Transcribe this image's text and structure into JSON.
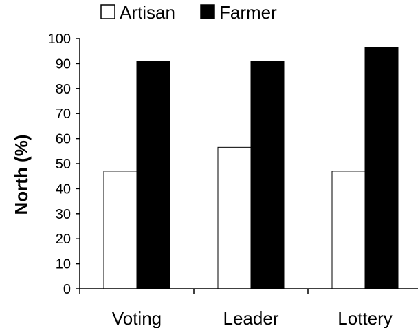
{
  "chart_data": {
    "type": "bar",
    "categories": [
      "Voting",
      "Leader",
      "Lottery"
    ],
    "series": [
      {
        "name": "Artisan",
        "values": [
          47,
          56.5,
          47
        ],
        "fill": "#ffffff",
        "stroke": "#000000"
      },
      {
        "name": "Farmer",
        "values": [
          91,
          91,
          96.5
        ],
        "fill": "#000000",
        "stroke": "#000000"
      }
    ],
    "ylabel": "North (%)",
    "xlabel": "",
    "title": "",
    "ylim": [
      0,
      100
    ],
    "yticks": [
      "0",
      "10",
      "20",
      "30",
      "40",
      "50",
      "60",
      "70",
      "80",
      "90",
      "100"
    ],
    "grid": false,
    "legend_position": "top"
  }
}
